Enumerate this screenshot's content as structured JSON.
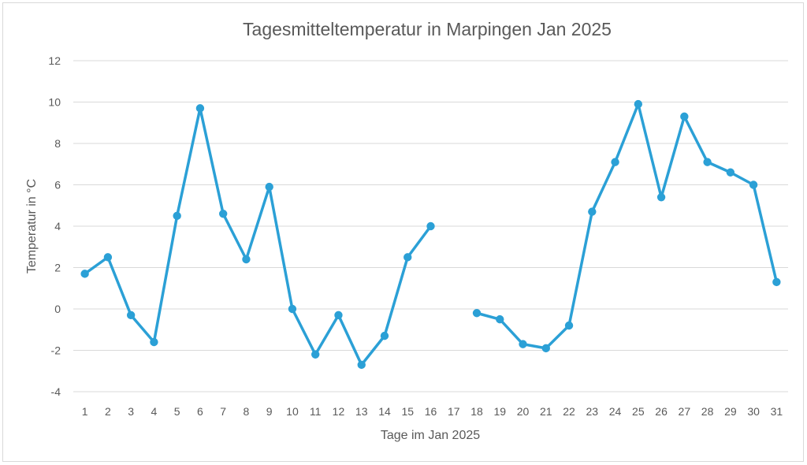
{
  "chart_data": {
    "type": "line",
    "title": "Tagesmitteltemperatur in Marpingen Jan 2025",
    "xlabel": "Tage im Jan 2025",
    "ylabel": "Temperatur in °C",
    "ylim": [
      -4,
      12
    ],
    "yticks": [
      "-4",
      "-2",
      "0",
      "2",
      "4",
      "6",
      "8",
      "10",
      "12"
    ],
    "categories": [
      "1",
      "2",
      "3",
      "4",
      "5",
      "6",
      "7",
      "8",
      "9",
      "10",
      "11",
      "12",
      "13",
      "14",
      "15",
      "16",
      "17",
      "18",
      "19",
      "20",
      "21",
      "22",
      "23",
      "24",
      "25",
      "26",
      "27",
      "28",
      "29",
      "30",
      "31"
    ],
    "series": [
      {
        "color": "#2ba0d6",
        "values": [
          1.7,
          2.5,
          -0.3,
          -1.6,
          4.5,
          9.7,
          4.6,
          2.4,
          5.9,
          0.0,
          -2.2,
          -0.3,
          -2.7,
          -1.3,
          2.5,
          4.0,
          null,
          -0.2,
          -0.5,
          -1.7,
          -1.9,
          -0.8,
          4.7,
          7.1,
          9.9,
          5.4,
          9.3,
          7.1,
          6.6,
          6.0,
          1.3
        ]
      }
    ],
    "grid": "horizontal",
    "legend": "none"
  }
}
